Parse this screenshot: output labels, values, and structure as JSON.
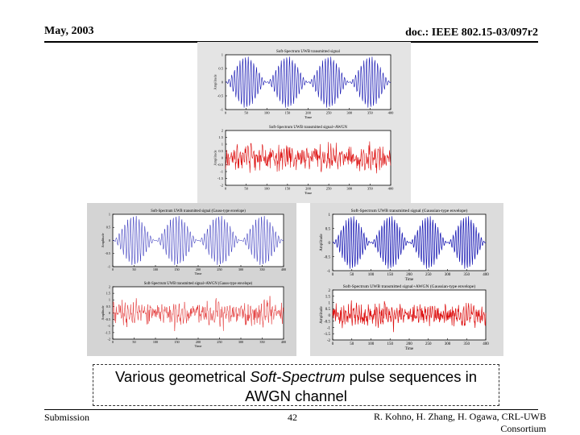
{
  "header": {
    "date": "May, 2003",
    "doc_id": "doc.: IEEE 802.15-03/097r2"
  },
  "footer": {
    "left": "Submission",
    "page": "42",
    "authors_line1": "R. Kohno, H. Zhang, H. Ogawa, CRL-UWB",
    "authors_line2": "Consortium"
  },
  "caption": {
    "before": "Various geometrical ",
    "italic": "Soft-Spectrum",
    "after": " pulse sequences in AWGN channel"
  },
  "colors": {
    "clean_signal": "#1010b0",
    "noisy_signal": "#dd1010"
  },
  "chart_data": [
    {
      "type": "line",
      "title": "Soft-Spectrum UWB transmitted signal",
      "xlabel": "Time",
      "ylabel": "Amplitude",
      "xlim": [
        0,
        400
      ],
      "ylim": [
        -1,
        1
      ],
      "xticks": [
        0,
        50,
        100,
        150,
        200,
        250,
        300,
        350,
        400
      ],
      "yticks": [
        "1",
        "0.5",
        "0",
        "-0.5",
        "-1"
      ],
      "series": [
        {
          "style": "clean"
        }
      ]
    },
    {
      "type": "line",
      "title": "Soft-Spectrum UWB transmitted signal+AWGN",
      "xlabel": "Time",
      "ylabel": "Amplitude",
      "xlim": [
        0,
        400
      ],
      "ylim": [
        -2,
        2
      ],
      "xticks": [
        0,
        50,
        100,
        150,
        200,
        250,
        300,
        350,
        400
      ],
      "yticks": [
        "2",
        "1.5",
        "1",
        "0.5",
        "0",
        "-0.5",
        "-1",
        "-1.5",
        "-2"
      ],
      "series": [
        {
          "style": "noisy"
        }
      ]
    },
    {
      "type": "line",
      "title": "Soft-Spectrum UWB transmitted signal (Gauss-type envelope)",
      "xlabel": "Time",
      "ylabel": "Amplitude",
      "xlim": [
        0,
        400
      ],
      "ylim": [
        -1,
        1
      ],
      "xticks": [
        0,
        50,
        100,
        150,
        200,
        250,
        300,
        350,
        400
      ],
      "yticks": [
        "1",
        "0.5",
        "0",
        "-0.5",
        "-1"
      ],
      "series": [
        {
          "style": "clean"
        }
      ]
    },
    {
      "type": "line",
      "title": "Soft-Spectrum UWB transmitted signal+AWGN (Gauss-type envelope)",
      "xlabel": "Time",
      "ylabel": "Amplitude",
      "xlim": [
        0,
        400
      ],
      "ylim": [
        -2,
        2
      ],
      "xticks": [
        0,
        50,
        100,
        150,
        200,
        250,
        300,
        350,
        400
      ],
      "yticks": [
        "2",
        "1.5",
        "1",
        "0.5",
        "0",
        "-0.5",
        "-1",
        "-1.5",
        "-2"
      ],
      "series": [
        {
          "style": "noisy"
        }
      ]
    },
    {
      "type": "line",
      "title": "Soft-Spectrum UWB transmitted signal (Gaussian-type envelope)",
      "xlabel": "Time",
      "ylabel": "Amplitude",
      "xlim": [
        0,
        400
      ],
      "ylim": [
        -1,
        1
      ],
      "xticks": [
        0,
        50,
        100,
        150,
        200,
        250,
        300,
        350,
        400
      ],
      "yticks": [
        "1",
        "0.5",
        "0",
        "-0.5",
        "-1"
      ],
      "series": [
        {
          "style": "clean"
        }
      ]
    },
    {
      "type": "line",
      "title": "Soft-Spectrum UWB transmitted signal+AWGN (Gaussian-type envelope)",
      "xlabel": "Time",
      "ylabel": "Amplitude",
      "xlim": [
        0,
        400
      ],
      "ylim": [
        -2,
        2
      ],
      "xticks": [
        0,
        50,
        100,
        150,
        200,
        250,
        300,
        350,
        400
      ],
      "yticks": [
        "2",
        "1.5",
        "1",
        "0.5",
        "0",
        "-0.5",
        "-1",
        "-1.5",
        "-2"
      ],
      "series": [
        {
          "style": "noisy"
        }
      ]
    }
  ]
}
